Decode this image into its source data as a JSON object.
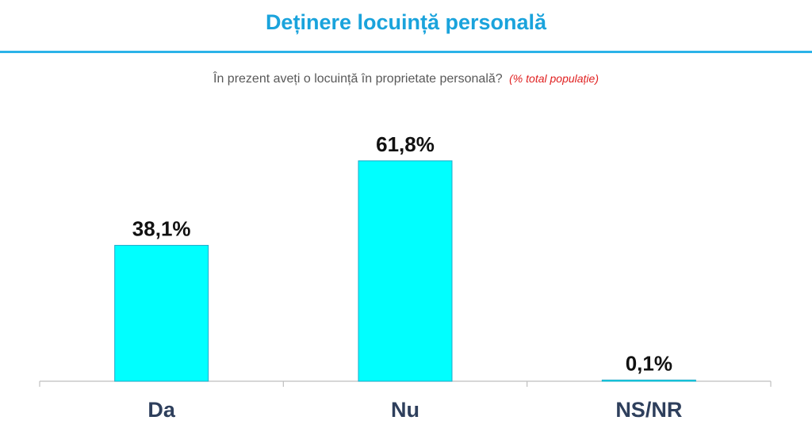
{
  "header": {
    "title": "Deținere locuință personală",
    "subtitle": "În prezent aveți o locuință în proprietate personală?",
    "note": "(% total populație)"
  },
  "colors": {
    "title": "#1aa3dc",
    "rule": "#2bb3e8",
    "bar": "#00ffff",
    "bar_outline": "#1fa9c9",
    "note": "#e02020",
    "axis": "#bfbfbf",
    "category_label": "#2e3f5c",
    "value_label": "#111111"
  },
  "chart_data": {
    "type": "bar",
    "categories": [
      "Da",
      "Nu",
      "NS/NR"
    ],
    "values": [
      38.1,
      61.8,
      0.1
    ],
    "value_labels": [
      "38,1%",
      "61,8%",
      "0,1%"
    ],
    "ylim": [
      0,
      100
    ],
    "grid": false,
    "legend": "none"
  }
}
